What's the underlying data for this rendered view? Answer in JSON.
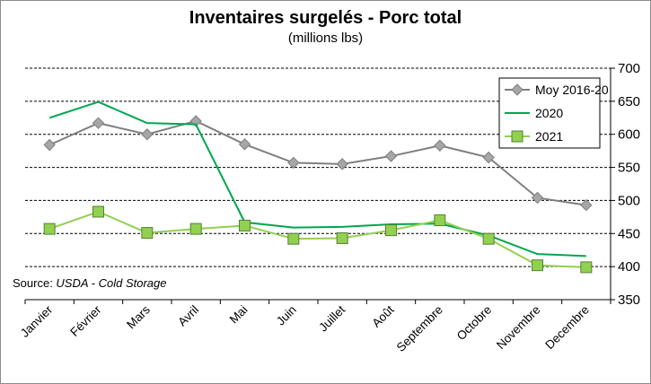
{
  "chart_data": {
    "type": "line",
    "title": "Inventaires surgelés - Porc total",
    "subtitle": "(millions lbs)",
    "categories": [
      "Janvier",
      "Février",
      "Mars",
      "Avril",
      "Mai",
      "Juin",
      "Juillet",
      "Août",
      "Septembre",
      "Octobre",
      "Novembre",
      "Decembre"
    ],
    "ylim": [
      350,
      700
    ],
    "yticks": [
      350,
      400,
      450,
      500,
      550,
      600,
      650,
      700
    ],
    "grid": true,
    "legend_position": "top-right",
    "series": [
      {
        "name": "Moy 2016-20",
        "color": "#7f7f7f",
        "marker": "diamond",
        "values": [
          584,
          617,
          600,
          620,
          585,
          557,
          555,
          567,
          583,
          565,
          504,
          493
        ]
      },
      {
        "name": "2020",
        "color": "#00a650",
        "marker": "none",
        "values": [
          625,
          649,
          617,
          615,
          467,
          459,
          460,
          464,
          465,
          447,
          419,
          416
        ]
      },
      {
        "name": "2021",
        "color": "#92d050",
        "marker": "square",
        "values": [
          457,
          483,
          451,
          457,
          462,
          442,
          443,
          455,
          470,
          442,
          402,
          399
        ]
      }
    ],
    "source_prefix": "Source: ",
    "source_name": "USDA - Cold Storage"
  }
}
